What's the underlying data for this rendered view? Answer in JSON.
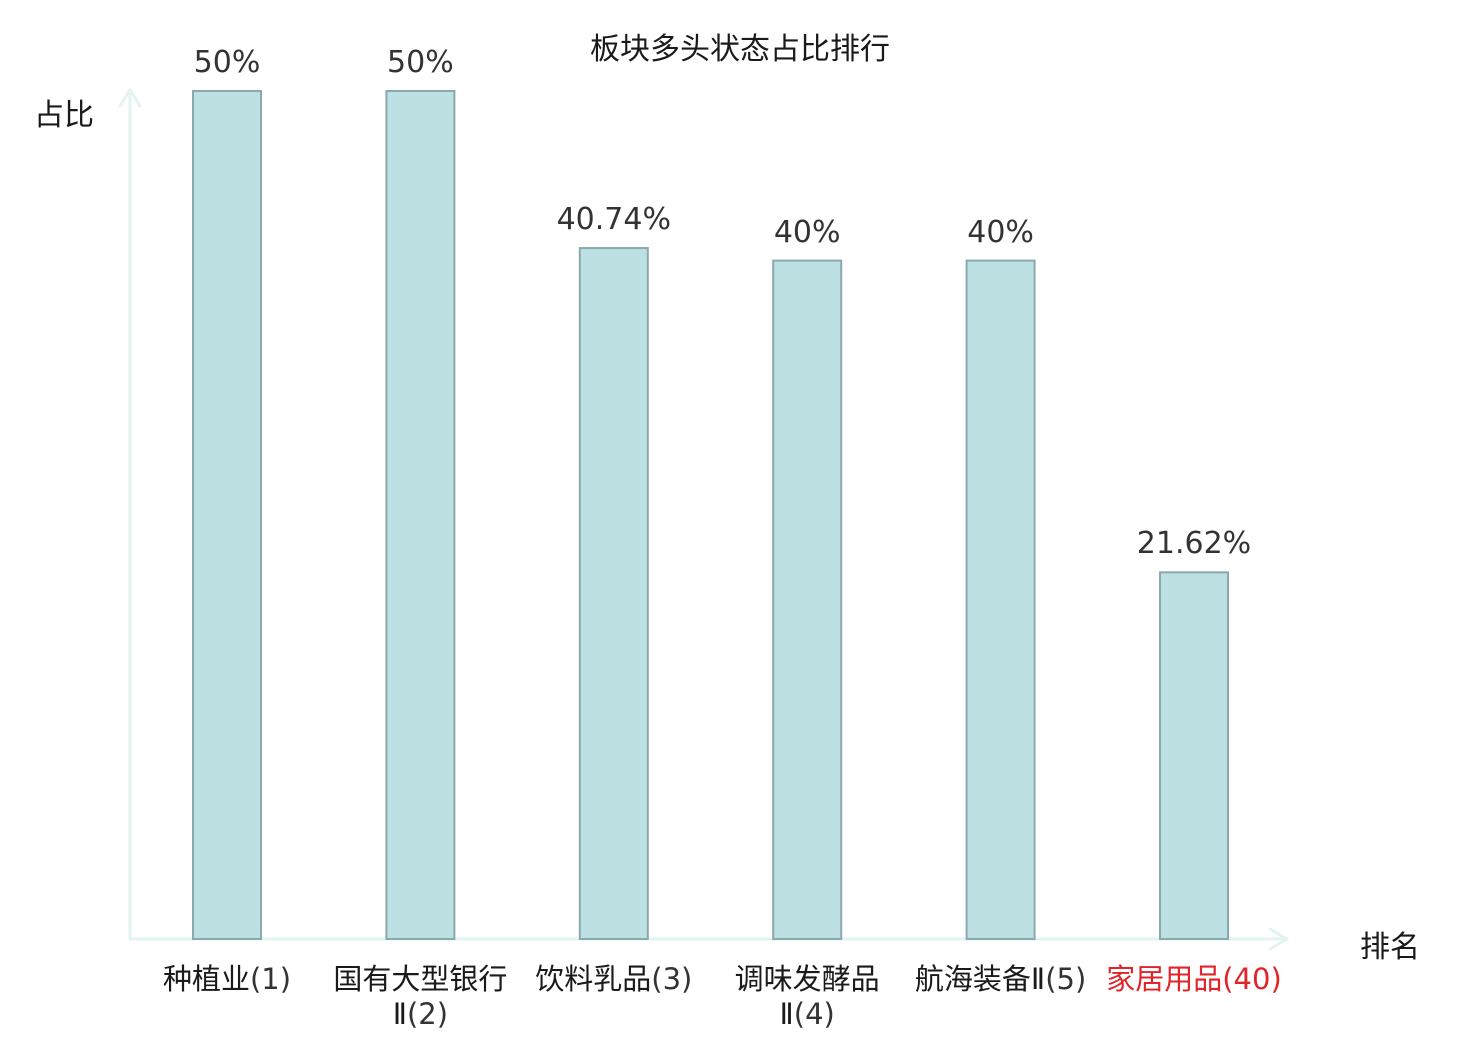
{
  "chart_data": {
    "type": "bar",
    "title": "板块多头状态占比排行",
    "ylabel": "占比",
    "xlabel": "排名",
    "ylim": [
      0,
      50
    ],
    "grid": false,
    "categories": [
      {
        "name": "种植业",
        "rank": "(1)",
        "value": 50,
        "label": "50%",
        "highlight": false
      },
      {
        "name": "国有大型银行Ⅱ",
        "rank": "(2)",
        "value": 50,
        "label": "50%",
        "highlight": false
      },
      {
        "name": "饮料乳品",
        "rank": "(3)",
        "value": 40.74,
        "label": "40.74%",
        "highlight": false
      },
      {
        "name": "调味发酵品Ⅱ",
        "rank": "(4)",
        "value": 40,
        "label": "40%",
        "highlight": false
      },
      {
        "name": "航海装备Ⅱ",
        "rank": "(5)",
        "value": 40,
        "label": "40%",
        "highlight": false
      },
      {
        "name": "家居用品",
        "rank": "(40)",
        "value": 21.62,
        "label": "21.62%",
        "highlight": true
      }
    ],
    "colors": {
      "bar_fill": "#bde0e3",
      "bar_stroke": "#8aa9ae",
      "axis": "#e2f3f1",
      "highlight_text": "#e0242a"
    }
  }
}
